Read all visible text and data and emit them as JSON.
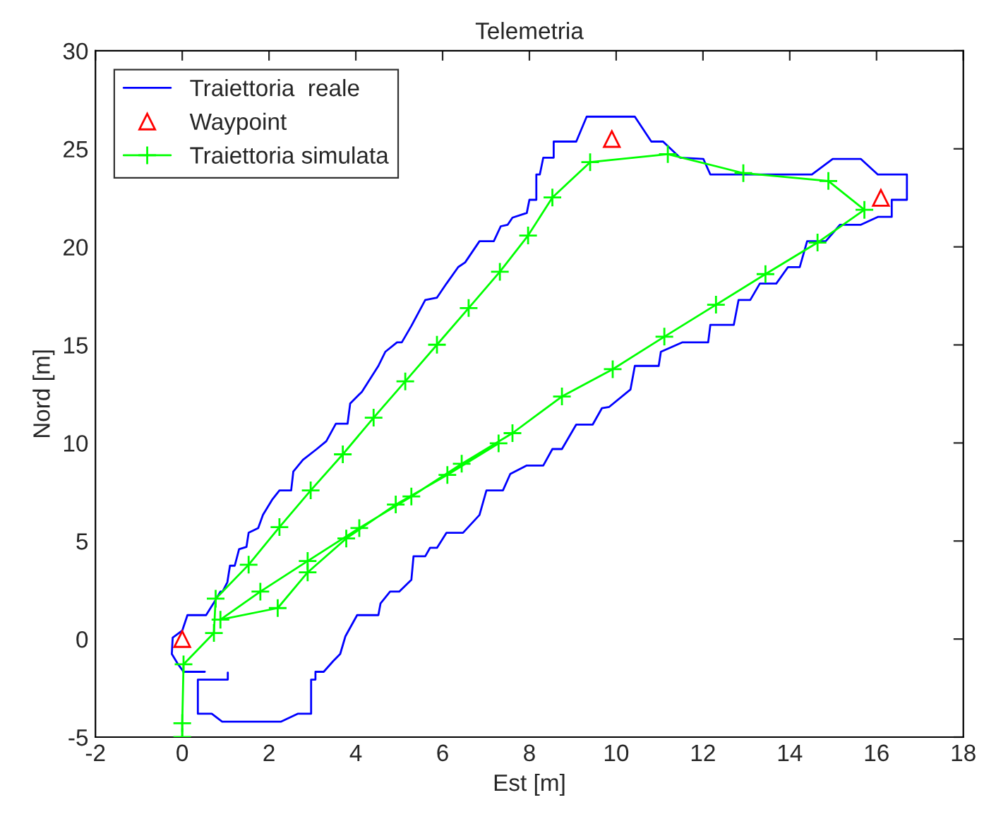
{
  "chart_data": {
    "type": "line",
    "title": "Telemetria",
    "xlabel": "Est [m]",
    "ylabel": "Nord [m]",
    "xlim": [
      -2,
      18
    ],
    "ylim": [
      -5,
      30
    ],
    "xticks": [
      -2,
      0,
      2,
      4,
      6,
      8,
      10,
      12,
      14,
      16,
      18
    ],
    "yticks": [
      -5,
      0,
      5,
      10,
      15,
      20,
      25,
      30
    ],
    "grid": false,
    "legend": "top left",
    "series": [
      {
        "name": "Traiettoria  reale",
        "color": "#0000ff",
        "marker": "none",
        "x": [
          1.05,
          1.05,
          0.36,
          0.36,
          0.68,
          0.92,
          2.28,
          2.66,
          2.97,
          2.97,
          3.07,
          3.07,
          3.26,
          3.48,
          3.64,
          3.76,
          4.03,
          4.52,
          4.57,
          4.79,
          5.0,
          5.28,
          5.33,
          5.6,
          5.71,
          5.87,
          6.09,
          6.47,
          6.85,
          7.01,
          7.39,
          7.56,
          7.94,
          8.32,
          8.53,
          8.75,
          9.08,
          9.46,
          9.67,
          9.84,
          10.33,
          10.43,
          10.98,
          11.03,
          11.52,
          12.12,
          12.17,
          12.71,
          12.82,
          13.09,
          13.31,
          13.69,
          13.96,
          14.23,
          14.4,
          14.83,
          15.16,
          15.64,
          16.03,
          16.35,
          16.35,
          16.7,
          16.7,
          16.03,
          15.64,
          14.99,
          14.51,
          12.17,
          12.01,
          11.47,
          11.08,
          10.81,
          10.43,
          9.32,
          9.08,
          8.56,
          8.56,
          8.32,
          8.24,
          8.16,
          8.16,
          8.0,
          7.94,
          7.61,
          7.5,
          7.34,
          7.18,
          6.85,
          6.52,
          6.36,
          6.09,
          5.87,
          5.6,
          5.28,
          5.06,
          4.95,
          4.68,
          4.52,
          4.14,
          3.87,
          3.81,
          3.54,
          3.32,
          3.1,
          2.78,
          2.56,
          2.51,
          2.24,
          2.07,
          1.86,
          1.75,
          1.53,
          1.48,
          1.31,
          1.21,
          1.1,
          1.04,
          0.93,
          0.88,
          0.72,
          0.55,
          0.12,
          0.0,
          -0.22,
          -0.24,
          -0.11,
          0.03,
          0.52
        ],
        "values": [
          -1.71,
          -2.07,
          -2.07,
          -3.81,
          -3.81,
          -4.21,
          -4.21,
          -3.81,
          -3.81,
          -2.07,
          -2.07,
          -1.67,
          -1.67,
          -1.12,
          -0.76,
          0.14,
          1.22,
          1.22,
          1.82,
          2.42,
          2.42,
          3.02,
          4.22,
          4.22,
          4.65,
          4.65,
          5.42,
          5.42,
          6.33,
          7.58,
          7.58,
          8.42,
          8.85,
          8.85,
          9.69,
          9.69,
          10.94,
          10.94,
          11.77,
          11.84,
          12.73,
          13.93,
          13.93,
          14.65,
          15.13,
          15.13,
          16.02,
          16.02,
          17.29,
          17.29,
          18.13,
          18.13,
          18.97,
          18.97,
          20.29,
          20.29,
          21.13,
          21.13,
          21.53,
          21.53,
          22.4,
          22.4,
          23.69,
          23.69,
          24.48,
          24.48,
          23.69,
          23.69,
          24.48,
          24.55,
          25.37,
          25.37,
          26.64,
          26.64,
          25.37,
          25.37,
          24.55,
          24.55,
          23.69,
          23.69,
          22.4,
          22.4,
          21.73,
          21.49,
          21.13,
          21.05,
          20.29,
          20.29,
          19.21,
          18.97,
          18.13,
          17.41,
          17.29,
          15.97,
          15.13,
          15.13,
          14.65,
          13.93,
          12.61,
          12.01,
          10.98,
          10.98,
          10.09,
          9.69,
          9.14,
          8.54,
          7.58,
          7.58,
          7.1,
          6.33,
          5.66,
          5.42,
          4.7,
          4.58,
          3.74,
          3.74,
          2.9,
          2.42,
          2.42,
          1.82,
          1.22,
          1.22,
          0.43,
          0.07,
          -0.76,
          -1.24,
          -1.67,
          -1.67
        ]
      },
      {
        "name": "Waypoint",
        "type": "scatter",
        "color": "#ff0000",
        "marker": "triangle",
        "x": [
          0.0,
          9.9,
          16.1
        ],
        "values": [
          0.0,
          25.5,
          22.5
        ]
      },
      {
        "name": "Traiettoria simulata",
        "color": "#00ff00",
        "marker": "cross",
        "x": [
          0.0,
          0.0,
          0.03,
          0.73,
          0.77,
          1.53,
          2.24,
          2.96,
          3.7,
          4.41,
          5.14,
          5.87,
          6.6,
          7.32,
          7.97,
          8.53,
          9.4,
          11.19,
          12.93,
          14.89,
          15.72,
          14.64,
          13.44,
          12.3,
          11.11,
          9.92,
          8.75,
          7.61,
          6.44,
          5.28,
          4.08,
          2.89,
          1.8,
          0.88,
          2.2,
          2.89,
          3.78,
          4.92,
          6.11,
          7.29
        ],
        "values": [
          -5.0,
          -4.29,
          -1.29,
          0.31,
          2.06,
          3.79,
          5.71,
          7.58,
          9.42,
          11.29,
          13.14,
          15.01,
          16.88,
          18.73,
          20.58,
          22.52,
          24.32,
          24.73,
          23.76,
          23.36,
          21.89,
          20.22,
          18.61,
          17.05,
          15.42,
          13.76,
          12.37,
          10.5,
          8.94,
          7.27,
          5.66,
          3.98,
          2.42,
          0.99,
          1.58,
          3.4,
          5.13,
          6.86,
          8.37,
          9.98
        ]
      }
    ]
  }
}
